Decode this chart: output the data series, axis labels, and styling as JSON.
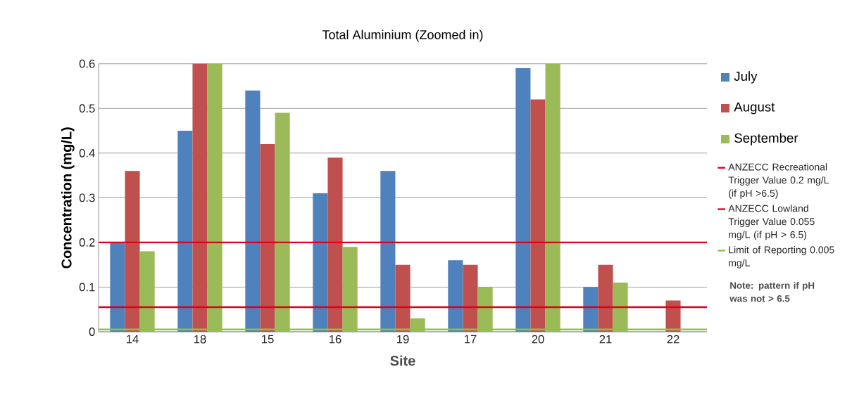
{
  "chart_data": {
    "type": "bar",
    "title": "Total Aluminium (Zoomed in)",
    "xlabel": "Site",
    "ylabel": "Concentration (mg/L)",
    "categories": [
      "14",
      "18",
      "15",
      "16",
      "19",
      "17",
      "20",
      "21",
      "22"
    ],
    "series": [
      {
        "name": "July",
        "color": "#4f81bd",
        "values": [
          0.2,
          0.45,
          0.54,
          0.31,
          0.36,
          0.16,
          0.59,
          0.1,
          null
        ]
      },
      {
        "name": "August",
        "color": "#c0504d",
        "values": [
          0.36,
          0.6,
          0.42,
          0.39,
          0.15,
          0.15,
          0.52,
          0.15,
          0.07
        ]
      },
      {
        "name": "September",
        "color": "#9bbb59",
        "values": [
          0.18,
          0.6,
          0.49,
          0.19,
          0.03,
          0.1,
          0.6,
          0.11,
          null
        ]
      }
    ],
    "ref_lines": [
      {
        "axis": "y",
        "value": 0.2,
        "label": "ANZECC Recreational Trigger Value 0.2 mg/L (if pH >6.5)",
        "color": "#e0001b"
      },
      {
        "axis": "y",
        "value": 0.055,
        "label": "ANZECC Lowland Trigger Value 0.055 mg/L (if pH > 6.5)",
        "color": "#e0001b"
      },
      {
        "axis": "y",
        "value": 0.005,
        "label": "Limit of Reporting 0.005 mg/L",
        "color": "#8fc14a"
      }
    ],
    "annotations": [
      "Note: pattern if pH was not > 6.5"
    ],
    "ylim": [
      0,
      0.6
    ],
    "yticks": [
      0,
      0.1,
      0.2,
      0.3,
      0.4,
      0.5,
      0.6
    ],
    "grid": "y",
    "legend": "right"
  }
}
